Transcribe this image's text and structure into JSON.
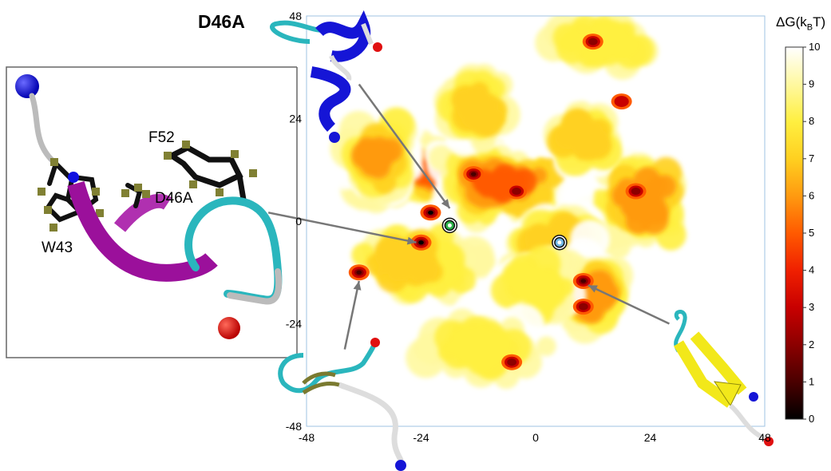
{
  "title": "D46A",
  "chart_data": {
    "type": "heatmap",
    "xlim": [
      -48,
      48
    ],
    "ylim": [
      -48,
      48
    ],
    "xticks": [
      "-48",
      "-24",
      "0",
      "24",
      "48"
    ],
    "yticks": [
      "48",
      "24",
      "0",
      "-24",
      "-48"
    ],
    "colorbar": {
      "label": "ΔG(k",
      "label_sub": "B",
      "label_end": "T)",
      "range": [
        0,
        10
      ],
      "ticks": [
        "0",
        "1",
        "2",
        "3",
        "4",
        "5",
        "6",
        "7",
        "8",
        "9",
        "10"
      ],
      "colors": [
        "#000000",
        "#4a0000",
        "#8c0000",
        "#c80000",
        "#f02000",
        "#ff5a00",
        "#ff9a10",
        "#ffd020",
        "#ffef40",
        "#fff8a0",
        "#ffffff"
      ]
    },
    "basins": [
      {
        "x": -20,
        "y": 12,
        "sx": 15,
        "sy": 6,
        "dg": 3.5
      },
      {
        "x": -8,
        "y": 9,
        "sx": 12,
        "sy": 7,
        "dg": 4
      },
      {
        "x": 22,
        "y": 5,
        "sx": 8,
        "sy": 9,
        "dg": 5
      },
      {
        "x": -33,
        "y": 15,
        "sx": 5,
        "sy": 6,
        "dg": 5.5
      },
      {
        "x": -12,
        "y": 26,
        "sx": 5,
        "sy": 6,
        "dg": 6
      },
      {
        "x": 10,
        "y": 20,
        "sx": 6,
        "sy": 5,
        "dg": 6.5
      },
      {
        "x": 5,
        "y": -5,
        "sx": 8,
        "sy": 7,
        "dg": 6
      },
      {
        "x": -25,
        "y": -10,
        "sx": 10,
        "sy": 6,
        "dg": 6.5
      },
      {
        "x": 12,
        "y": -17,
        "sx": 5,
        "sy": 7,
        "dg": 5.5
      },
      {
        "x": 0,
        "y": -15,
        "sx": 6,
        "sy": 6,
        "dg": 7
      },
      {
        "x": 14,
        "y": 42,
        "sx": 8,
        "sy": 4,
        "dg": 7
      },
      {
        "x": -12,
        "y": -30,
        "sx": 10,
        "sy": 5,
        "dg": 7.5
      }
    ],
    "wells": [
      {
        "x": -22,
        "y": 2,
        "dg": 0
      },
      {
        "x": -24,
        "y": -5,
        "dg": 0
      },
      {
        "x": -37,
        "y": -12,
        "dg": 1
      },
      {
        "x": 10,
        "y": -14,
        "dg": 0.5
      },
      {
        "x": 10,
        "y": -20,
        "dg": 1.5
      },
      {
        "x": -13,
        "y": 11,
        "dg": 1
      },
      {
        "x": -4,
        "y": 7,
        "dg": 1.5
      },
      {
        "x": 21,
        "y": 7,
        "dg": 2
      },
      {
        "x": 12,
        "y": 42,
        "dg": 1.5
      },
      {
        "x": -5,
        "y": -33,
        "dg": 2
      },
      {
        "x": 18,
        "y": 28,
        "dg": 3
      }
    ],
    "markers": [
      {
        "x": -18,
        "y": -1,
        "color": "#2bb24a"
      },
      {
        "x": 5,
        "y": -5,
        "color": "#6fb6e6"
      }
    ],
    "arrows": [
      {
        "from": [
          -37,
          32
        ],
        "to": [
          -18,
          3
        ]
      },
      {
        "from": [
          -56,
          2
        ],
        "to": [
          -25,
          -5
        ]
      },
      {
        "from": [
          -40,
          -30
        ],
        "to": [
          -37,
          -14
        ]
      },
      {
        "from": [
          28,
          -24
        ],
        "to": [
          11,
          -15
        ]
      }
    ]
  },
  "labels": {
    "residue1": "F52",
    "residue2": "D46A",
    "residue3": "W43"
  }
}
